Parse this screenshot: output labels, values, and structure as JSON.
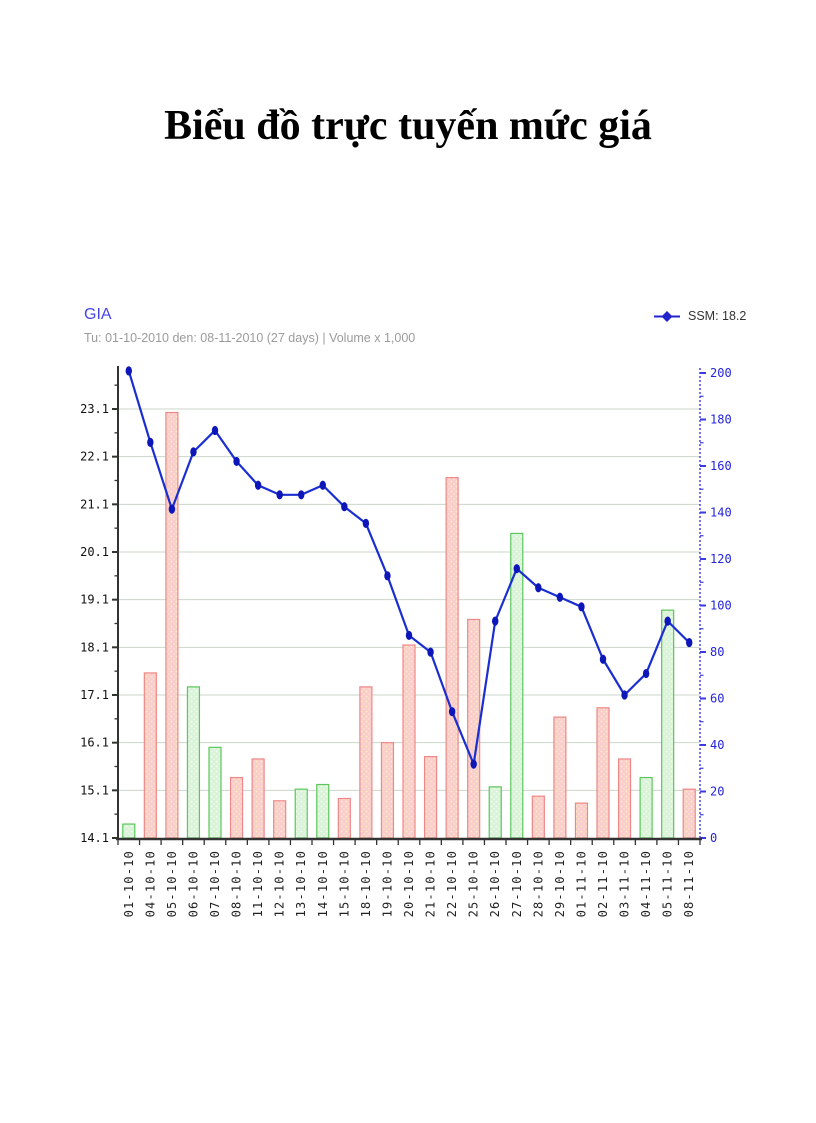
{
  "page": {
    "title": "Biểu đồ trực tuyến mức giá"
  },
  "chart": {
    "name": "GIA",
    "name_color": "#4545e6",
    "subtitle": "Tu: 01-10-2010 den: 08-11-2010 (27 days) | Volume x 1,000",
    "subtitle_color": "#9b9b9b",
    "legend_label": "SSM: 18.2",
    "legend_color": "#2323cc"
  },
  "chart_data": {
    "type": "line+bar",
    "title": "GIA",
    "subtitle": "Tu: 01-10-2010 den: 08-11-2010 (27 days) | Volume x 1,000",
    "legend": [
      "SSM: 18.2"
    ],
    "categories": [
      "01-10-10",
      "04-10-10",
      "05-10-10",
      "06-10-10",
      "07-10-10",
      "08-10-10",
      "11-10-10",
      "12-10-10",
      "13-10-10",
      "14-10-10",
      "15-10-10",
      "18-10-10",
      "19-10-10",
      "20-10-10",
      "21-10-10",
      "22-10-10",
      "25-10-10",
      "26-10-10",
      "27-10-10",
      "28-10-10",
      "29-10-10",
      "01-11-10",
      "02-11-10",
      "03-11-10",
      "04-11-10",
      "05-11-10",
      "08-11-10"
    ],
    "series": [
      {
        "name": "SSM",
        "type": "line",
        "axis": "left",
        "color": "#1b2ed1",
        "marker_color": "#0d16b8",
        "values": [
          23.9,
          22.4,
          21.0,
          22.2,
          22.65,
          22.0,
          21.5,
          21.3,
          21.3,
          21.5,
          21.05,
          20.7,
          19.6,
          18.35,
          18.0,
          16.75,
          15.65,
          18.65,
          19.75,
          19.35,
          19.15,
          18.95,
          17.85,
          17.1,
          17.55,
          18.65,
          18.2
        ]
      },
      {
        "name": "Volume x 1,000",
        "type": "bar",
        "axis": "right",
        "values": [
          6,
          71,
          183,
          65,
          39,
          26,
          34,
          16,
          21,
          23,
          17,
          65,
          41,
          83,
          35,
          155,
          94,
          22,
          131,
          18,
          52,
          15,
          56,
          34,
          26,
          98,
          21
        ],
        "directions": [
          "up",
          "down",
          "down",
          "up",
          "up",
          "down",
          "down",
          "down",
          "up",
          "up",
          "down",
          "down",
          "down",
          "down",
          "down",
          "down",
          "down",
          "up",
          "up",
          "down",
          "down",
          "down",
          "down",
          "down",
          "up",
          "up",
          "down"
        ]
      }
    ],
    "left_axis": {
      "min": 14.1,
      "max": 23.96,
      "tick_start": 14.1,
      "tick_step": 1,
      "tick_count": 10,
      "minor_step": 0.5
    },
    "right_axis": {
      "min": 0,
      "max": 200,
      "tick_step": 20,
      "minor_step": 10
    },
    "grid": true,
    "legend_position": "top-right",
    "colors": {
      "up_fill": "#d9f3d9",
      "up_stroke": "#5bc75b",
      "up_dot": "#f6fcef",
      "down_fill": "#f9cdcd",
      "down_stroke": "#ee8787",
      "down_dot": "#fdf0bc",
      "grid": "#ccd6cb",
      "axis": "#333333",
      "right_axis": "#3a3ae0",
      "left_label": "#111111",
      "right_label": "#2424dd",
      "x_label": "#222222"
    }
  }
}
